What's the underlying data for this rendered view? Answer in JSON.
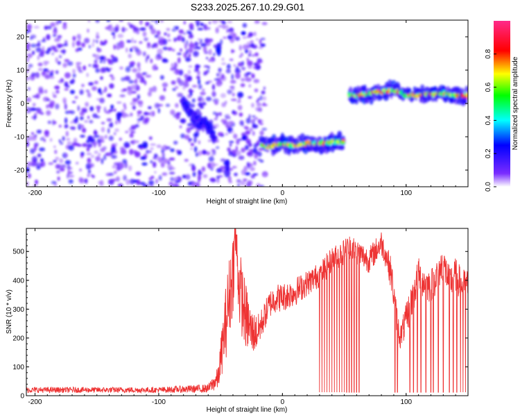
{
  "title": "S233.2025.267.10.29.G01",
  "chart_data": [
    {
      "type": "heatmap",
      "title": "S233.2025.267.10.29.G01",
      "xlabel": "Height of straight line (km)",
      "ylabel": "Frequency (Hz)",
      "xlim": [
        -207,
        150
      ],
      "ylim": [
        -25,
        25
      ],
      "xticks": [
        -200,
        -100,
        0,
        100
      ],
      "xtick_labels": [
        "-200",
        "-100",
        "0",
        "100"
      ],
      "yticks": [
        -20,
        -10,
        0,
        10,
        20
      ],
      "ytick_labels": [
        "-20",
        "-10",
        "0",
        "10",
        "20"
      ],
      "colorbar": {
        "label": "Normalized spectral amplitude",
        "range": [
          0,
          1
        ],
        "ticks": [
          0.0,
          0.2,
          0.4,
          0.6,
          0.8
        ],
        "tick_labels": [
          "0.0",
          "0.2",
          "0.4",
          "0.6",
          "0.8"
        ],
        "colors": [
          "#ffffff",
          "#5a00ff",
          "#0000ff",
          "#00ffff",
          "#00ff00",
          "#ffff00",
          "#ff0000",
          "#ff00aa"
        ]
      },
      "noise_region": {
        "x": [
          -207,
          -14
        ],
        "freq": [
          -25,
          25
        ],
        "amplitude": 0.25
      },
      "traces": [
        {
          "name": "descending line",
          "x": [
            -80,
            -72,
            -64,
            -58,
            -55
          ],
          "freq": [
            -0.5,
            -3,
            -6,
            -8.5,
            -10
          ],
          "amplitude": 0.25
        },
        {
          "name": "upper blob",
          "x": [
            -52,
            -51
          ],
          "freq": [
            16,
            17
          ],
          "amplitude": 0.3
        },
        {
          "name": "lower blob",
          "x": [
            -45,
            -44
          ],
          "freq": [
            -18,
            -20
          ],
          "amplitude": 0.3
        },
        {
          "name": "track 1",
          "x": [
            -17,
            -10,
            0,
            10,
            20,
            30,
            40,
            50
          ],
          "freq": [
            -12.5,
            -13,
            -12,
            -12.5,
            -12,
            -12,
            -11.5,
            -11.5
          ],
          "amplitude": 0.8
        },
        {
          "name": "track 2",
          "x": [
            54,
            60,
            70,
            80,
            90,
            100,
            110,
            120,
            130,
            140,
            150
          ],
          "freq": [
            2.5,
            2.5,
            3,
            3.5,
            4,
            2.5,
            2.5,
            3,
            3,
            2.5,
            2.5
          ],
          "amplitude": 0.85
        }
      ]
    },
    {
      "type": "line",
      "xlabel": "Height of straight line (km)",
      "ylabel": "SNR (10 * v/v)",
      "xlim": [
        -207,
        150
      ],
      "ylim": [
        0,
        580
      ],
      "xticks": [
        -200,
        -100,
        0,
        100
      ],
      "xtick_labels": [
        "-200",
        "-100",
        "0",
        "100"
      ],
      "yticks": [
        0,
        100,
        200,
        300,
        400,
        500
      ],
      "ytick_labels": [
        "0",
        "100",
        "200",
        "300",
        "400",
        "500"
      ],
      "series": [
        {
          "name": "SNR",
          "color": "#ee3333",
          "envelope": {
            "x": [
              -207,
              -100,
              -60,
              -52,
              -45,
              -40,
              -38,
              -35,
              -30,
              -25,
              -20,
              -15,
              -10,
              -5,
              0,
              10,
              20,
              30,
              40,
              50,
              55,
              60,
              70,
              80,
              85,
              88,
              92,
              95,
              100,
              105,
              110,
              115,
              120,
              125,
              130,
              135,
              140,
              145,
              150
            ],
            "y": [
              20,
              20,
              25,
              60,
              280,
              430,
              560,
              380,
              280,
              220,
              220,
              270,
              320,
              340,
              340,
              360,
              390,
              420,
              470,
              500,
              520,
              500,
              470,
              530,
              470,
              420,
              280,
              200,
              260,
              340,
              420,
              390,
              380,
              420,
              460,
              390,
              420,
              380,
              380
            ],
            "spread": [
              10,
              10,
              15,
              40,
              140,
              150,
              80,
              140,
              120,
              80,
              60,
              50,
              50,
              50,
              50,
              50,
              45,
              45,
              45,
              45,
              45,
              45,
              45,
              45,
              45,
              60,
              50,
              40,
              60,
              70,
              60,
              60,
              60,
              60,
              60,
              60,
              60,
              60,
              60
            ]
          },
          "dropouts_x": [
            30,
            32,
            34,
            36,
            38,
            40,
            42,
            44,
            46,
            48,
            50,
            52,
            54,
            56,
            58,
            60,
            62,
            91,
            93,
            103,
            106,
            109,
            112,
            116,
            120,
            122,
            126,
            130,
            135,
            138,
            141,
            144,
            146,
            148
          ]
        }
      ]
    }
  ]
}
